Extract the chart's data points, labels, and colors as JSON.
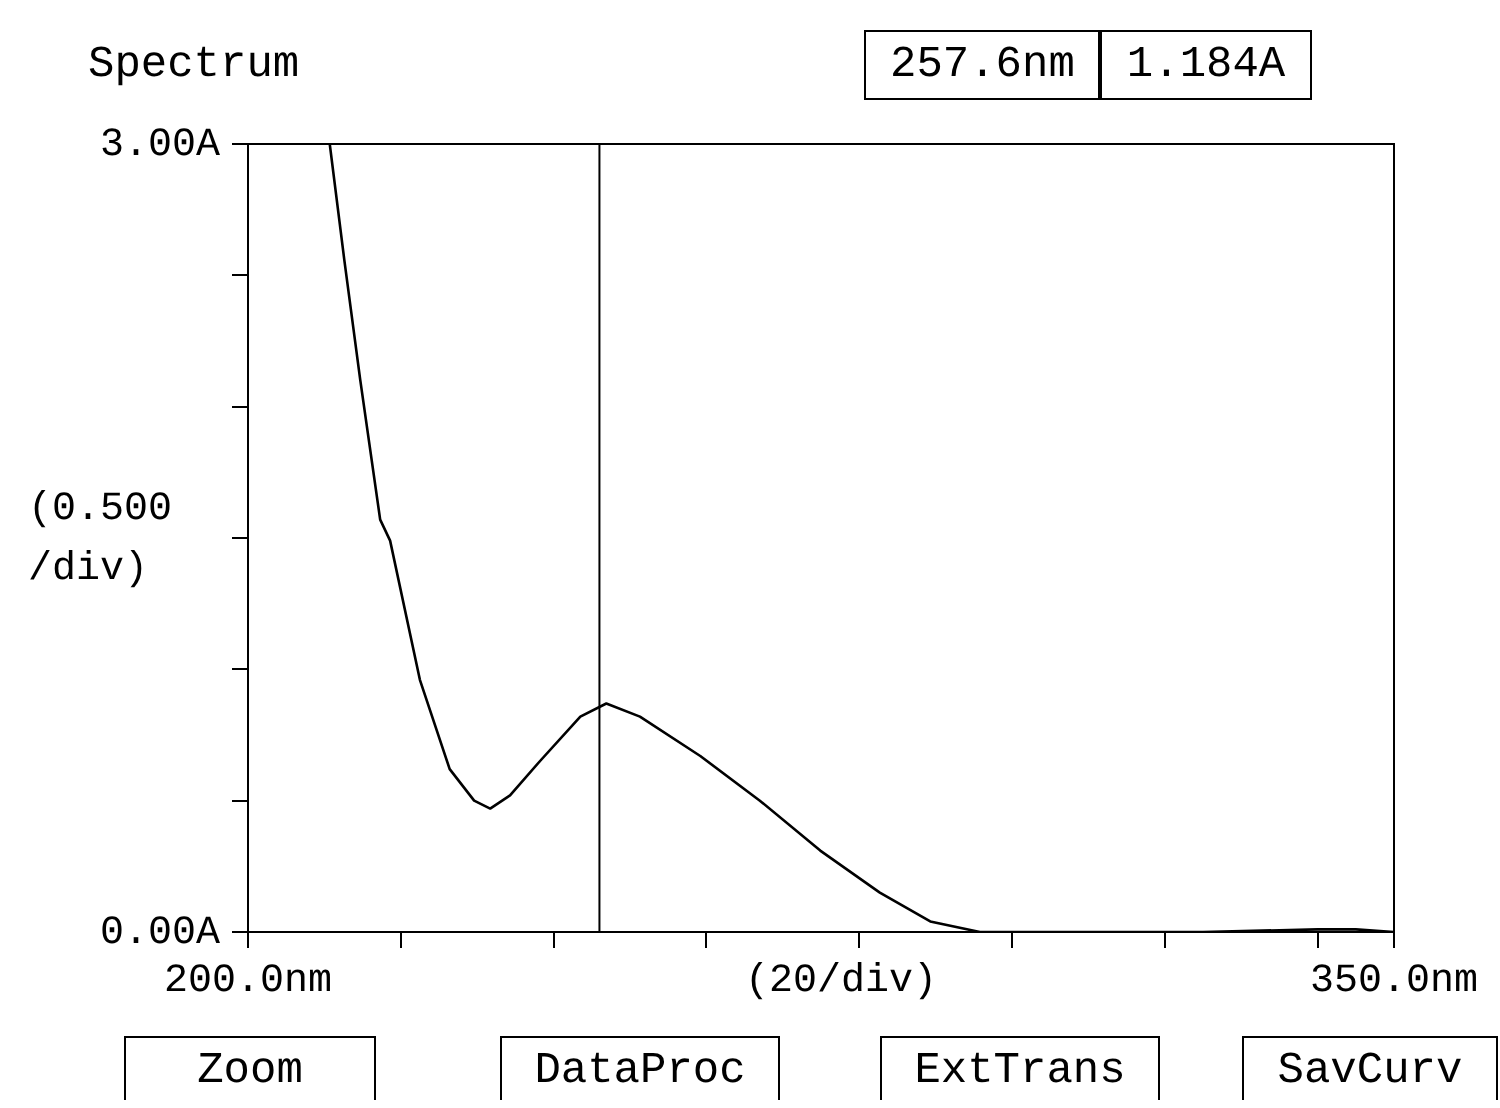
{
  "chart_data": {
    "type": "line",
    "title": "Spectrum",
    "xlabel": "(20/div)",
    "ylabel": "(0.500 /div)",
    "x": [
      210.7,
      212.6,
      214.7,
      217.3,
      218.6,
      222.5,
      226.4,
      229.6,
      231.7,
      234.3,
      238.2,
      243.5,
      246.9,
      251.3,
      259.2,
      267,
      274.9,
      282.7,
      289.3,
      295.8,
      310,
      325,
      340,
      345,
      350
    ],
    "series": [
      {
        "color": "#000000",
        "values": [
          3.0,
          2.56,
          2.1,
          1.57,
          1.49,
          0.96,
          0.62,
          0.5,
          0.47,
          0.52,
          0.65,
          0.82,
          0.87,
          0.82,
          0.67,
          0.5,
          0.31,
          0.15,
          0.04,
          0,
          0,
          0,
          0.01,
          0.01,
          0
        ]
      }
    ],
    "xlim": [
      200,
      350
    ],
    "ylim": [
      0,
      3
    ],
    "xticks": [
      {
        "value": 200,
        "label": "200.0nm"
      },
      {
        "value": 220,
        "label": null
      },
      {
        "value": 240,
        "label": null
      },
      {
        "value": 260,
        "label": null
      },
      {
        "value": 280,
        "label": null
      },
      {
        "value": 300,
        "label": null
      },
      {
        "value": 320,
        "label": null
      },
      {
        "value": 340,
        "label": null
      },
      {
        "value": 350,
        "label": "350.0nm"
      }
    ],
    "yticks": [
      {
        "value": 0,
        "label": "0.00A"
      },
      {
        "value": 0.5,
        "label": null
      },
      {
        "value": 1,
        "label": null
      },
      {
        "value": 1.5,
        "label": null
      },
      {
        "value": 2,
        "label": null
      },
      {
        "value": 2.5,
        "label": null
      },
      {
        "value": 3,
        "label": "3.00A"
      }
    ],
    "ref_lines": [
      {
        "axis": "x",
        "value": 246,
        "color": "#000000"
      }
    ],
    "annotations": [
      "257.6nm",
      "1.184A",
      "Zoom",
      "DataProc",
      "ExtTrans",
      "SavCurv"
    ],
    "grid": false,
    "legend": false,
    "marker": "none",
    "line_style": "solid"
  }
}
